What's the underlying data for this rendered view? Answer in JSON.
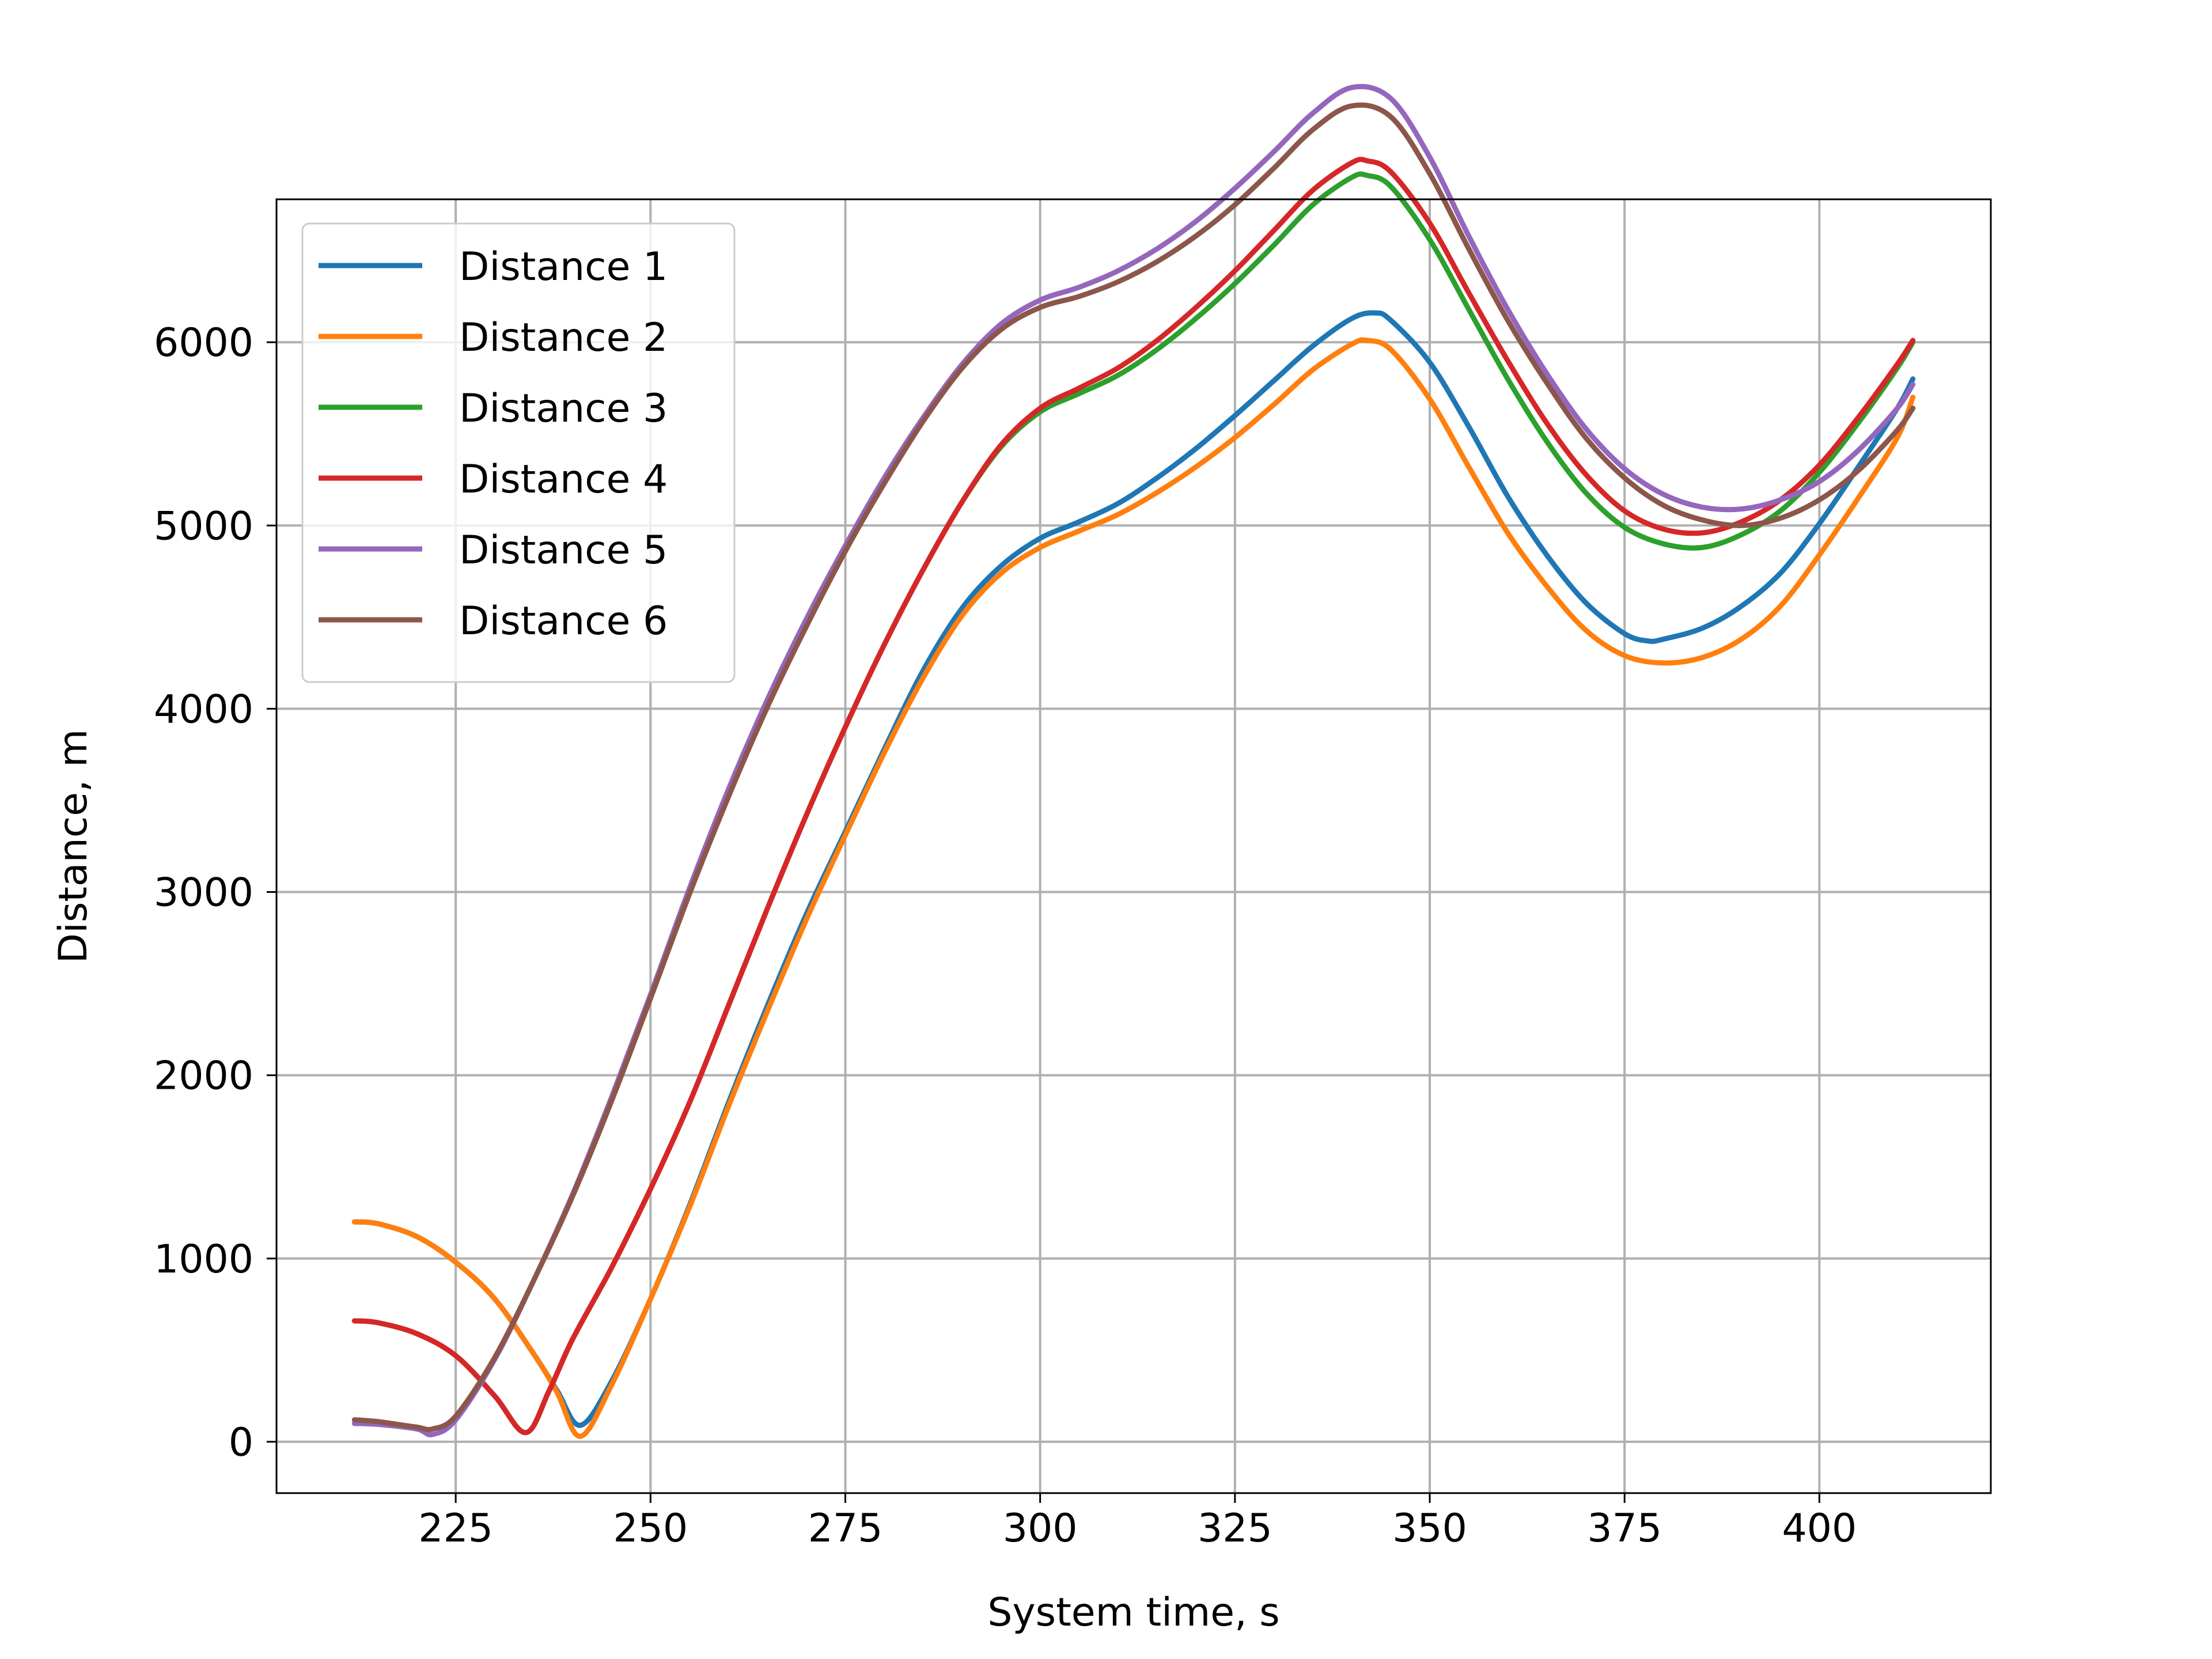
{
  "chart_data": {
    "type": "line",
    "title": "",
    "xlabel": "System time, s",
    "ylabel": "Distance, m",
    "xlim": [
      202,
      422
    ],
    "ylim": [
      -280,
      6780
    ],
    "xticks": [
      225,
      250,
      275,
      300,
      325,
      350,
      375,
      400
    ],
    "yticks": [
      0,
      1000,
      2000,
      3000,
      4000,
      5000,
      6000
    ],
    "grid": true,
    "legend_position": "top-left",
    "series": [
      {
        "name": "Distance 1",
        "color": "#1f77b4",
        "x": [
          212,
          215,
          220,
          225,
          230,
          235,
          238,
          241,
          245,
          250,
          255,
          260,
          265,
          270,
          275,
          280,
          285,
          290,
          295,
          300,
          305,
          310,
          315,
          320,
          325,
          330,
          335,
          340,
          343,
          345,
          350,
          355,
          360,
          365,
          370,
          375,
          378,
          380,
          385,
          390,
          395,
          400,
          405,
          410,
          412
        ],
        "y": [
          1200,
          1190,
          1120,
          980,
          780,
          480,
          280,
          90,
          330,
          780,
          1290,
          1850,
          2380,
          2880,
          3330,
          3780,
          4210,
          4550,
          4780,
          4930,
          5020,
          5120,
          5260,
          5420,
          5600,
          5790,
          5980,
          6130,
          6160,
          6120,
          5890,
          5540,
          5160,
          4840,
          4580,
          4410,
          4370,
          4380,
          4440,
          4560,
          4740,
          5010,
          5320,
          5640,
          5800
        ]
      },
      {
        "name": "Distance 2",
        "color": "#ff7f0e",
        "x": [
          212,
          215,
          220,
          225,
          230,
          235,
          238,
          241,
          245,
          250,
          255,
          260,
          265,
          270,
          275,
          280,
          285,
          290,
          295,
          300,
          305,
          310,
          315,
          320,
          325,
          330,
          335,
          340,
          342,
          345,
          350,
          355,
          360,
          365,
          370,
          375,
          380,
          385,
          390,
          395,
          400,
          405,
          410,
          412
        ],
        "y": [
          1200,
          1190,
          1120,
          980,
          780,
          480,
          270,
          30,
          310,
          780,
          1280,
          1830,
          2350,
          2850,
          3310,
          3760,
          4170,
          4510,
          4740,
          4880,
          4970,
          5060,
          5180,
          5320,
          5480,
          5660,
          5850,
          5990,
          6010,
          5960,
          5690,
          5320,
          4960,
          4670,
          4430,
          4290,
          4250,
          4280,
          4380,
          4560,
          4840,
          5150,
          5480,
          5700
        ]
      },
      {
        "name": "Distance 3",
        "color": "#2ca02c",
        "x": [
          212,
          215,
          220,
          225,
          230,
          234,
          237,
          240,
          245,
          250,
          255,
          260,
          265,
          270,
          275,
          280,
          285,
          290,
          295,
          300,
          305,
          310,
          315,
          320,
          325,
          330,
          335,
          340,
          342,
          345,
          350,
          355,
          360,
          365,
          370,
          375,
          380,
          385,
          390,
          395,
          400,
          405,
          410,
          412
        ],
        "y": [
          660,
          650,
          590,
          470,
          250,
          50,
          280,
          560,
          950,
          1380,
          1850,
          2380,
          2910,
          3420,
          3900,
          4350,
          4760,
          5130,
          5430,
          5620,
          5720,
          5820,
          5960,
          6130,
          6320,
          6530,
          6750,
          6900,
          6910,
          6850,
          6560,
          6180,
          5800,
          5460,
          5180,
          4990,
          4900,
          4880,
          4950,
          5080,
          5290,
          5560,
          5860,
          6000
        ]
      },
      {
        "name": "Distance 4",
        "color": "#d62728",
        "x": [
          212,
          215,
          220,
          225,
          230,
          234,
          237,
          240,
          245,
          250,
          255,
          260,
          265,
          270,
          275,
          280,
          285,
          290,
          295,
          300,
          305,
          310,
          315,
          320,
          325,
          330,
          335,
          340,
          342,
          345,
          350,
          355,
          360,
          365,
          370,
          375,
          380,
          385,
          390,
          395,
          400,
          405,
          410,
          412
        ],
        "y": [
          660,
          650,
          590,
          470,
          250,
          50,
          280,
          560,
          950,
          1380,
          1850,
          2380,
          2910,
          3420,
          3900,
          4350,
          4760,
          5130,
          5440,
          5640,
          5750,
          5860,
          6010,
          6190,
          6390,
          6610,
          6830,
          6980,
          6990,
          6930,
          6650,
          6270,
          5900,
          5560,
          5280,
          5080,
          4980,
          4960,
          5020,
          5140,
          5330,
          5590,
          5880,
          6010
        ]
      },
      {
        "name": "Distance 5",
        "color": "#9467bd",
        "x": [
          212,
          215,
          220,
          222,
          225,
          230,
          235,
          240,
          245,
          250,
          255,
          260,
          265,
          270,
          275,
          280,
          285,
          290,
          295,
          300,
          305,
          310,
          315,
          320,
          325,
          330,
          335,
          340,
          345,
          350,
          355,
          360,
          365,
          370,
          375,
          380,
          385,
          390,
          395,
          400,
          405,
          410,
          412
        ],
        "y": [
          100,
          95,
          70,
          40,
          120,
          450,
          880,
          1350,
          1880,
          2440,
          3020,
          3560,
          4050,
          4490,
          4890,
          5260,
          5590,
          5880,
          6100,
          6230,
          6300,
          6390,
          6510,
          6660,
          6840,
          7040,
          7250,
          7390,
          7330,
          7010,
          6580,
          6180,
          5830,
          5530,
          5310,
          5170,
          5100,
          5090,
          5140,
          5240,
          5410,
          5640,
          5770
        ]
      },
      {
        "name": "Distance 6",
        "color": "#8c564b",
        "x": [
          212,
          215,
          220,
          222,
          225,
          230,
          235,
          240,
          245,
          250,
          255,
          260,
          265,
          270,
          275,
          280,
          285,
          290,
          295,
          300,
          305,
          310,
          315,
          320,
          325,
          330,
          335,
          340,
          345,
          350,
          355,
          360,
          365,
          370,
          375,
          380,
          385,
          390,
          395,
          400,
          405,
          410,
          412
        ],
        "y": [
          120,
          110,
          80,
          70,
          140,
          460,
          880,
          1340,
          1860,
          2420,
          2990,
          3520,
          4010,
          4450,
          4860,
          5230,
          5570,
          5860,
          6070,
          6190,
          6250,
          6330,
          6440,
          6580,
          6750,
          6950,
          7160,
          7290,
          7230,
          6920,
          6510,
          6120,
          5780,
          5480,
          5260,
          5110,
          5030,
          5000,
          5040,
          5140,
          5300,
          5520,
          5640
        ]
      }
    ]
  }
}
